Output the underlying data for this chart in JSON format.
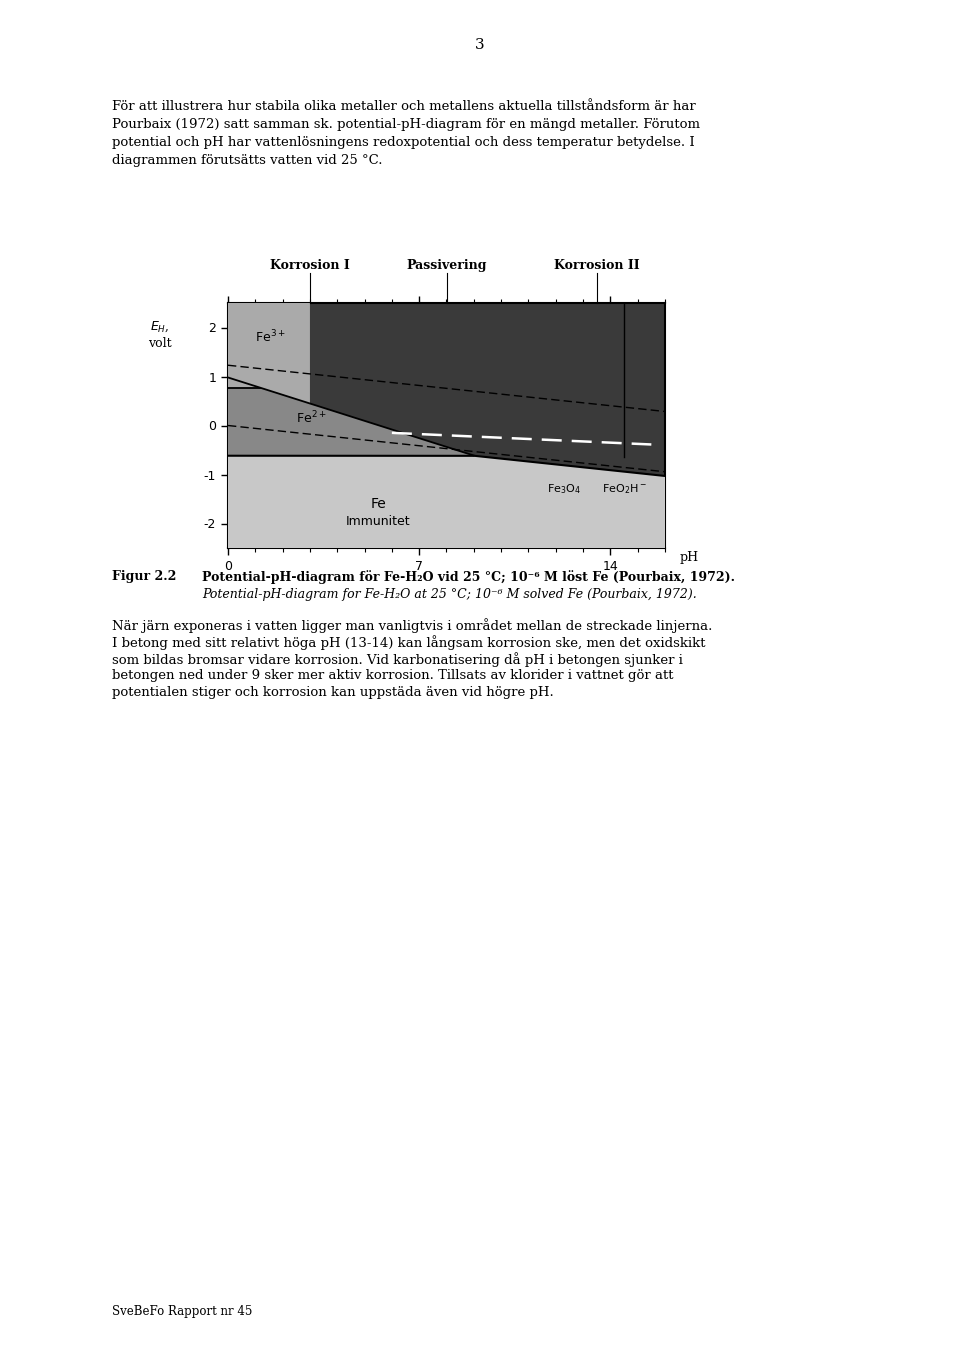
{
  "page_number": "3",
  "header_text_line1": "För att illustrera hur stabila olika metaller och metallens aktuella tillståndsform är har",
  "header_text_line2": "Pourbaix (1972) satt samman sk. potential-pH-diagram för en mängd metaller. Förutom",
  "header_text_line3": "potential och pH har vattenlösningens redoxpotential och dess temperatur betydelse. I",
  "header_text_line4": "diagrammen förutsätts vatten vid 25 °C.",
  "label_korrosion1": "Korrosion I",
  "label_passivering": "Passivering",
  "label_korrosion2": "Korrosion II",
  "ylabel_line1": "E",
  "ylabel_line2": "H,",
  "ylabel_line3": "volt",
  "xlabel": "pH",
  "ytick_labels": [
    "-2",
    "-1",
    "0",
    "1",
    "2"
  ],
  "ytick_vals": [
    -2,
    -1,
    0,
    1,
    2
  ],
  "xtick_labels": [
    "0",
    "7",
    "14"
  ],
  "xtick_vals": [
    0,
    7,
    14
  ],
  "xlim": [
    0,
    16
  ],
  "ylim": [
    -2.5,
    2.5
  ],
  "label_fe3plus": "Fe$^{3+}$",
  "label_fe2plus": "Fe$^{2+}$",
  "label_fe": "Fe",
  "label_immunitet": "Immunitet",
  "label_fe3o4": "Fe$_3$O$_4$",
  "label_feo2h": "FeO$_2$H$^-$",
  "color_immunity": "#cccccc",
  "color_fe2plus": "#909090",
  "color_fe3plus": "#aaaaaa",
  "color_passivation": "#404040",
  "color_corr1_upper": "#606060",
  "figcap_label": "Figur 2.2",
  "figcap_swedish": "Potential-pH-diagram för Fe-H₂O vid 25 °C; 10⁻⁶ M löst Fe (Pourbaix, 1972).",
  "figcap_english": "Potential-pH-diagram for Fe-H₂O at 25 °C; 10⁻⁶ M solved Fe (Pourbaix, 1972).",
  "body_line1": "När järn exponeras i vatten ligger man vanligtvis i området mellan de streckade linjerna.",
  "body_line2": "I betong med sitt relativt höga pH (13-14) kan långsam korrosion ske, men det oxidskikt",
  "body_line3": "som bildas bromsar vidare korrosion. Vid karbonatisering då pH i betongen sjunker i",
  "body_line4": "betongen ned under 9 sker mer aktiv korrosion. Tillsats av klorider i vattnet gör att",
  "body_line5": "potentialen stiger och korrosion kan uppstäda även vid högre pH.",
  "footer_text": "SveBeFo Rapport nr 45",
  "background_color": "#f5f5f0"
}
